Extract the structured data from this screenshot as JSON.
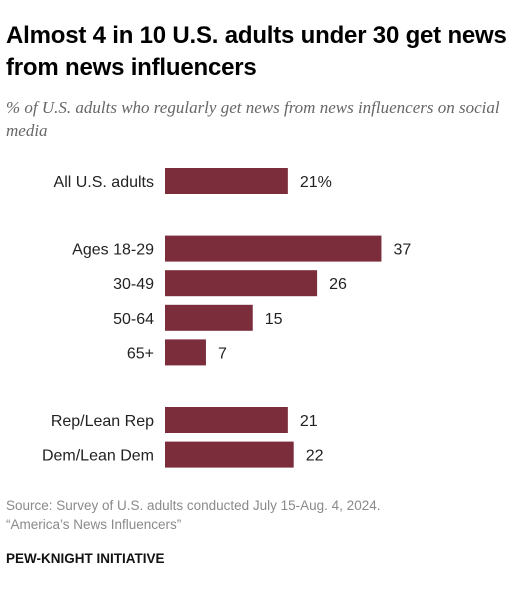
{
  "title": "Almost 4 in 10 U.S. adults under 30 get news from news influencers",
  "subtitle": "% of U.S. adults who regularly get news from news influencers on social media",
  "source_line1": "Source: Survey of U.S. adults conducted July 15-Aug. 4, 2024.",
  "source_line2": "“America’s News Influencers”",
  "brand": "PEW-KNIGHT INITIATIVE",
  "colors": {
    "bar": "#7b2d3c"
  },
  "chart_data": {
    "type": "bar",
    "orientation": "horizontal",
    "groups": [
      {
        "categories": [
          "All U.S. adults"
        ],
        "values": [
          21
        ],
        "value_labels": [
          "21%"
        ]
      },
      {
        "categories": [
          "Ages 18-29",
          "30-49",
          "50-64",
          "65+"
        ],
        "values": [
          37,
          26,
          15,
          7
        ],
        "value_labels": [
          "37",
          "26",
          "15",
          "7"
        ]
      },
      {
        "categories": [
          "Rep/Lean Rep",
          "Dem/Lean Dem"
        ],
        "values": [
          21,
          22
        ],
        "value_labels": [
          "21",
          "22"
        ]
      }
    ]
  }
}
